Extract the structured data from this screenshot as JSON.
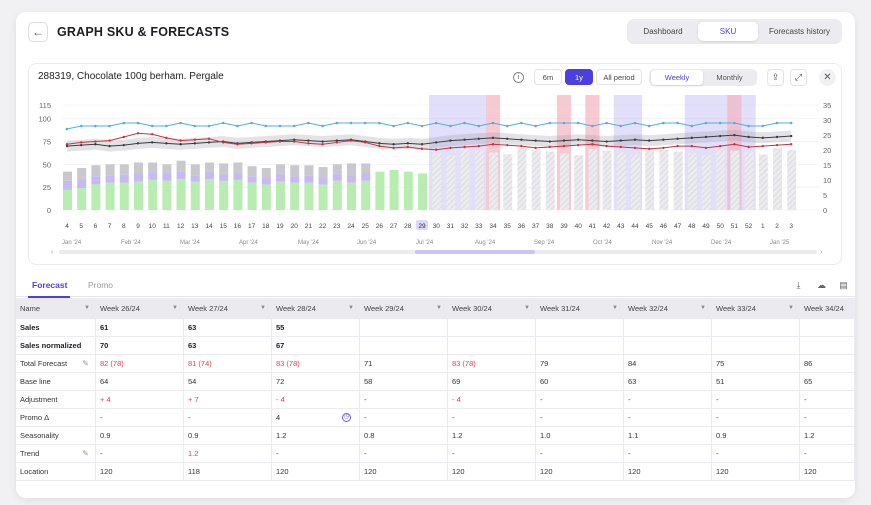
{
  "header": {
    "back_icon": "arrow-left-icon",
    "title": "GRAPH SKU & FORECASTS",
    "views": [
      "Dashboard",
      "SKU",
      "Forecasts history"
    ],
    "active_view": "SKU"
  },
  "chart_card": {
    "product": "288319, Chocolate 100g berham. Pergale",
    "ranges": [
      "6m",
      "1y",
      "All period"
    ],
    "active_range": "1y",
    "periods": [
      "Weekly",
      "Monthly"
    ],
    "active_period": "Weekly",
    "icons": [
      "info-icon",
      "export-icon",
      "expand-icon",
      "close-icon"
    ]
  },
  "chart_data": {
    "type": "bar",
    "x": [
      4,
      5,
      6,
      7,
      8,
      9,
      10,
      11,
      12,
      13,
      14,
      15,
      16,
      17,
      18,
      19,
      20,
      21,
      22,
      23,
      24,
      25,
      26,
      27,
      28,
      29,
      30,
      31,
      32,
      33,
      34,
      35,
      36,
      37,
      38,
      39,
      40,
      41,
      42,
      43,
      44,
      45,
      46,
      47,
      48,
      49,
      50,
      51,
      52,
      1,
      2,
      3
    ],
    "current_week": 29,
    "months": [
      "Jan '24",
      "Feb '24",
      "Mar '24",
      "Apr '24",
      "May '24",
      "Jun '24",
      "Jul '24",
      "Aug '24",
      "Sep '24",
      "Oct '24",
      "Nov '24",
      "Dec '24",
      "Jan '25"
    ],
    "y_left": [
      0,
      25,
      50,
      75,
      100,
      115
    ],
    "y_right": [
      0,
      5,
      10,
      15,
      20,
      25,
      30,
      35
    ],
    "bars_green": [
      22,
      24,
      28,
      30,
      30,
      31,
      33,
      32,
      34,
      31,
      34,
      32,
      33,
      30,
      28,
      31,
      30,
      30,
      28,
      32,
      30,
      32,
      42,
      44,
      42,
      40
    ],
    "bars_purple": [
      10,
      10,
      9,
      8,
      9,
      9,
      8,
      8,
      8,
      7,
      8,
      7,
      7,
      7,
      7,
      8,
      7,
      8,
      7,
      7,
      8,
      8,
      0,
      0,
      0,
      0
    ],
    "bars_grey": [
      10,
      12,
      12,
      12,
      11,
      12,
      11,
      10,
      12,
      12,
      10,
      12,
      12,
      11,
      11,
      11,
      12,
      11,
      12,
      11,
      13,
      11,
      0,
      0,
      0,
      0
    ],
    "forecast_bars": [
      60,
      62,
      64,
      63,
      65,
      64,
      63,
      66,
      65,
      64,
      63,
      65,
      64,
      66,
      64,
      65,
      63,
      64,
      66,
      65,
      64,
      63,
      65,
      66,
      65,
      64
    ],
    "line_red": [
      72,
      74,
      75,
      76,
      80,
      84,
      83,
      79,
      76,
      77,
      78,
      74,
      72,
      73,
      74,
      75,
      75,
      73,
      72,
      74,
      76,
      74,
      70,
      68,
      69,
      67,
      66,
      68,
      69,
      70,
      72,
      71,
      70,
      68,
      69,
      70,
      71,
      72,
      70,
      69,
      68,
      67,
      68,
      70,
      70,
      68,
      70,
      72,
      69,
      70,
      71,
      72
    ],
    "line_black": [
      70,
      71,
      72,
      70,
      71,
      73,
      74,
      73,
      72,
      73,
      74,
      75,
      73,
      74,
      75,
      76,
      77,
      76,
      75,
      76,
      77,
      75,
      73,
      72,
      73,
      72,
      74,
      76,
      77,
      78,
      79,
      78,
      77,
      76,
      75,
      76,
      77,
      76,
      75,
      76,
      77,
      76,
      77,
      78,
      79,
      80,
      81,
      82,
      80,
      79,
      80,
      81
    ],
    "line_blue": [
      27,
      28,
      28,
      28,
      29,
      29,
      28,
      28,
      29,
      28,
      28,
      29,
      28,
      29,
      28,
      28,
      28,
      29,
      28,
      29,
      29,
      29,
      29,
      28,
      29,
      28,
      29,
      28,
      29,
      28,
      29,
      28,
      29,
      28,
      29,
      29,
      29,
      28,
      29,
      28,
      29,
      28,
      29,
      29,
      28,
      29,
      29,
      29,
      28,
      28,
      29,
      29
    ],
    "band_purple": [
      [
        30,
        34
      ],
      [
        43,
        45
      ],
      [
        48,
        53
      ]
    ],
    "band_red": [
      [
        34,
        35
      ],
      [
        39,
        40
      ],
      [
        41,
        42
      ],
      [
        51,
        52
      ]
    ]
  },
  "tabs": {
    "items": [
      "Forecast",
      "Promo"
    ],
    "active": "Forecast",
    "icons": [
      "download-icon",
      "upload-icon",
      "table-settings-icon"
    ]
  },
  "table": {
    "columns": [
      "Name",
      "Week 26/24",
      "Week 27/24",
      "Week 28/24",
      "Week 29/24",
      "Week 30/24",
      "Week 31/24",
      "Week 32/24",
      "Week 33/24",
      "Week 34/24"
    ],
    "rows": [
      {
        "name": "Sales",
        "bold": true,
        "cells": [
          "61",
          "63",
          "55",
          "",
          "",
          "",
          "",
          "",
          ""
        ]
      },
      {
        "name": "Sales normalized",
        "bold": true,
        "cells": [
          "70",
          "63",
          "67",
          "",
          "",
          "",
          "",
          "",
          ""
        ]
      },
      {
        "name": "Total Forecast",
        "edit": true,
        "cells": [
          "82 (78)",
          "81 (74)",
          "83 (78)",
          "71",
          "83 (78)",
          "79",
          "84",
          "75",
          "86"
        ],
        "red": [
          0,
          1,
          2,
          4
        ]
      },
      {
        "name": "Base line",
        "cells": [
          "64",
          "54",
          "72",
          "58",
          "69",
          "60",
          "63",
          "51",
          "65"
        ]
      },
      {
        "name": "Adjustment",
        "cells": [
          "+ 4",
          "+ 7",
          "- 4",
          "-",
          "- 4",
          "-",
          "-",
          "-",
          "-"
        ],
        "red": [
          0,
          1,
          2,
          4
        ]
      },
      {
        "name": "Promo Δ",
        "cells": [
          "-",
          "-",
          "4",
          "-",
          "-",
          "-",
          "-",
          "-",
          "-"
        ],
        "circle": 2
      },
      {
        "name": "Seasonality",
        "cells": [
          "0.9",
          "0.9",
          "1.2",
          "0.8",
          "1.2",
          "1.0",
          "1.1",
          "0.9",
          "1.2"
        ]
      },
      {
        "name": "Trend",
        "edit": true,
        "cells": [
          "-",
          "1.2",
          "-",
          "-",
          "-",
          "-",
          "-",
          "-",
          "-"
        ],
        "red": [
          1
        ]
      },
      {
        "name": "Location",
        "cells": [
          "120",
          "118",
          "120",
          "120",
          "120",
          "120",
          "120",
          "120",
          "120"
        ]
      }
    ]
  }
}
